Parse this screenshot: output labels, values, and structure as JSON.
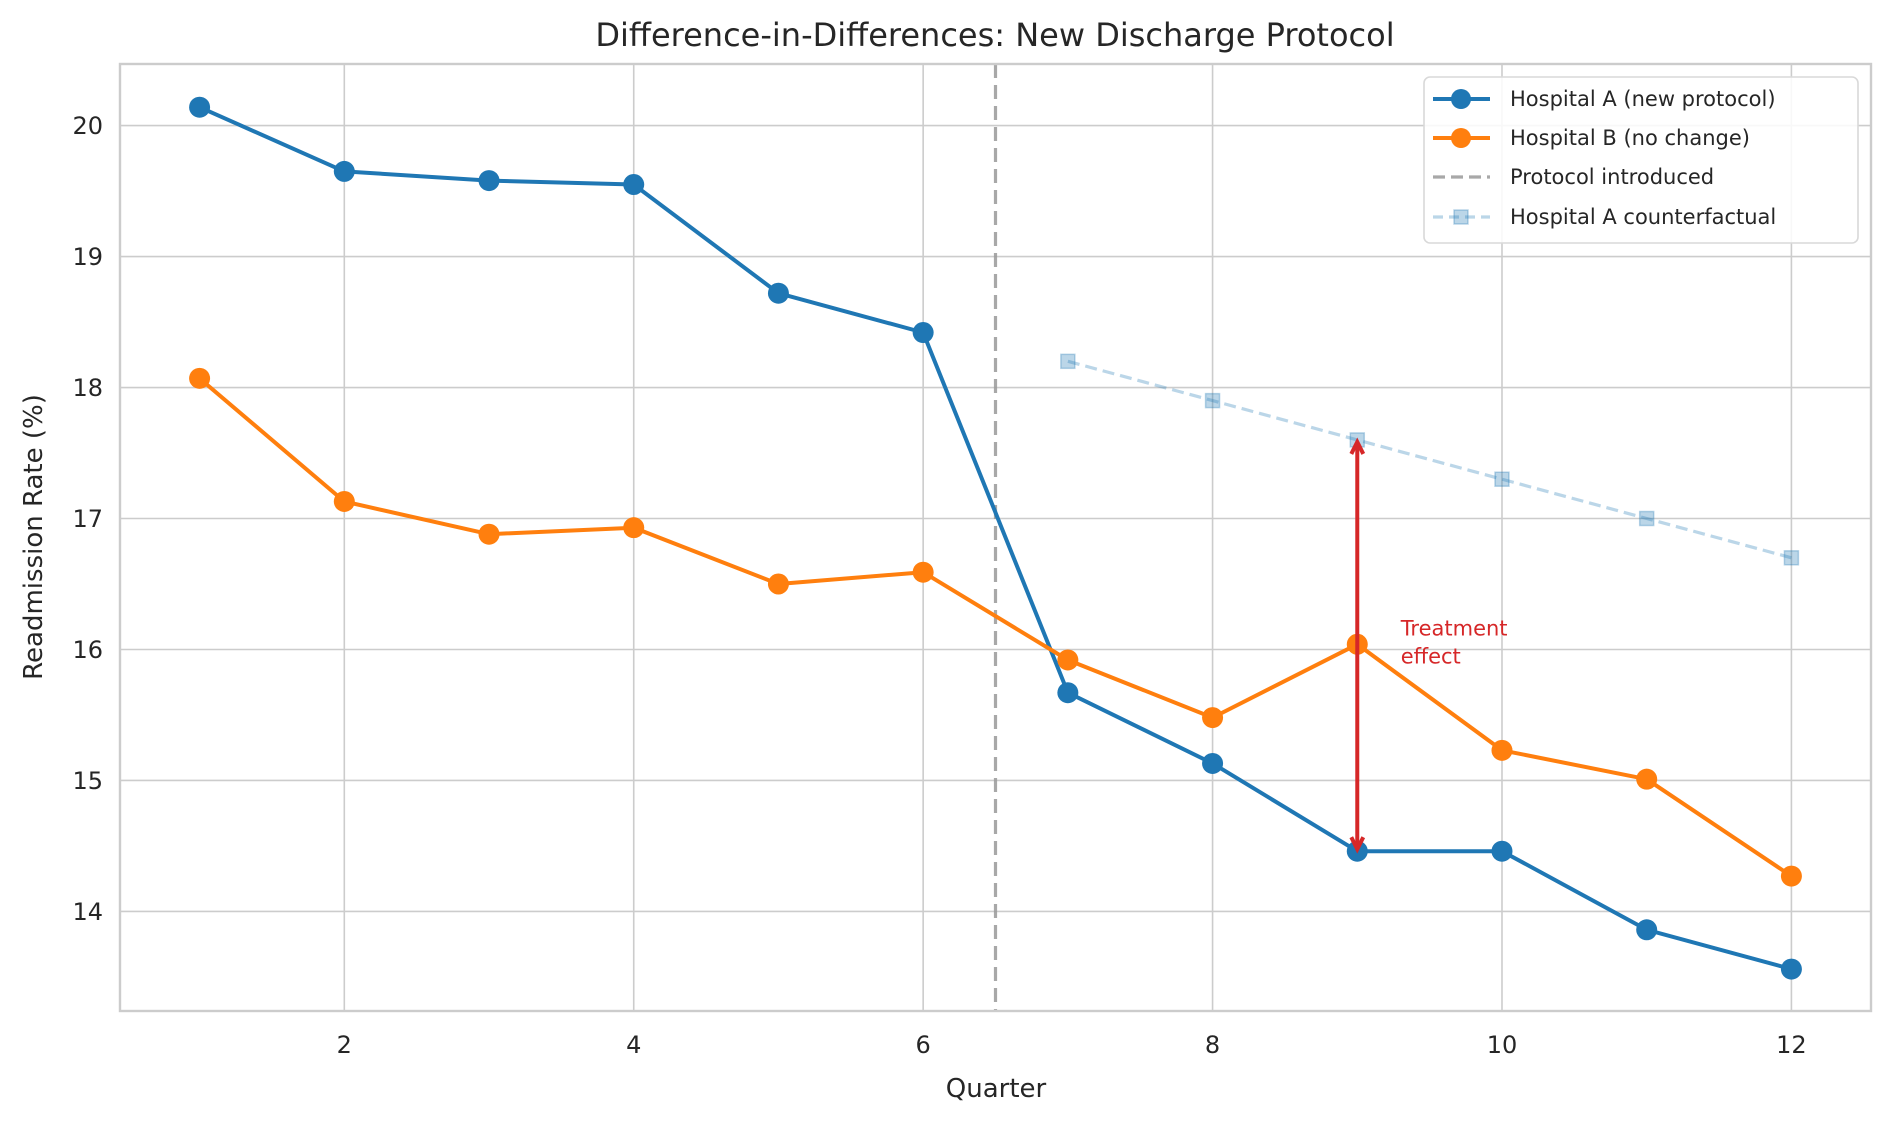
{
  "chart_data": {
    "type": "line",
    "title": "Difference-in-Differences: New Discharge Protocol",
    "xlabel": "Quarter",
    "ylabel": "Readmission Rate (%)",
    "xlim": [
      0.45,
      12.55
    ],
    "ylim": [
      13.24,
      20.47
    ],
    "xticks": [
      2,
      4,
      6,
      8,
      10,
      12
    ],
    "yticks": [
      14,
      15,
      16,
      17,
      18,
      19,
      20
    ],
    "grid": true,
    "legend_position": "top-right",
    "series": [
      {
        "name": "Hospital A (new protocol)",
        "color": "#1f77b4",
        "style": "solid",
        "marker": "circle",
        "x": [
          1,
          2,
          3,
          4,
          5,
          6,
          7,
          8,
          9,
          10,
          11,
          12
        ],
        "values": [
          20.14,
          19.65,
          19.58,
          19.55,
          18.72,
          18.42,
          15.67,
          15.13,
          14.46,
          14.46,
          13.86,
          13.56
        ]
      },
      {
        "name": "Hospital B (no change)",
        "color": "#ff7f0e",
        "style": "solid",
        "marker": "circle",
        "x": [
          1,
          2,
          3,
          4,
          5,
          6,
          7,
          8,
          9,
          10,
          11,
          12
        ],
        "values": [
          18.07,
          17.13,
          16.88,
          16.93,
          16.5,
          16.59,
          15.92,
          15.48,
          16.04,
          15.23,
          15.01,
          14.27
        ]
      },
      {
        "name": "Hospital A counterfactual",
        "color": "#1f77b4",
        "opacity": 0.3,
        "style": "dashed",
        "marker": "square",
        "x": [
          7,
          8,
          9,
          10,
          11,
          12
        ],
        "values": [
          18.2,
          17.9,
          17.6,
          17.3,
          17.0,
          16.7
        ]
      }
    ],
    "vline": {
      "name": "Protocol introduced",
      "x": 6.5,
      "color": "#999999",
      "style": "dashed"
    },
    "annotation": {
      "text_lines": [
        "Treatment",
        "effect"
      ],
      "text_x": 9.3,
      "text_y": 16.0,
      "arrow_x": 9,
      "arrow_from": 14.46,
      "arrow_to": 17.6,
      "color": "#d62728"
    },
    "legend": [
      {
        "label": "Hospital A (new protocol)",
        "key": "hospital-a"
      },
      {
        "label": "Hospital B (no change)",
        "key": "hospital-b"
      },
      {
        "label": "Protocol introduced",
        "key": "protocol"
      },
      {
        "label": "Hospital A counterfactual",
        "key": "counterfactual"
      }
    ]
  }
}
